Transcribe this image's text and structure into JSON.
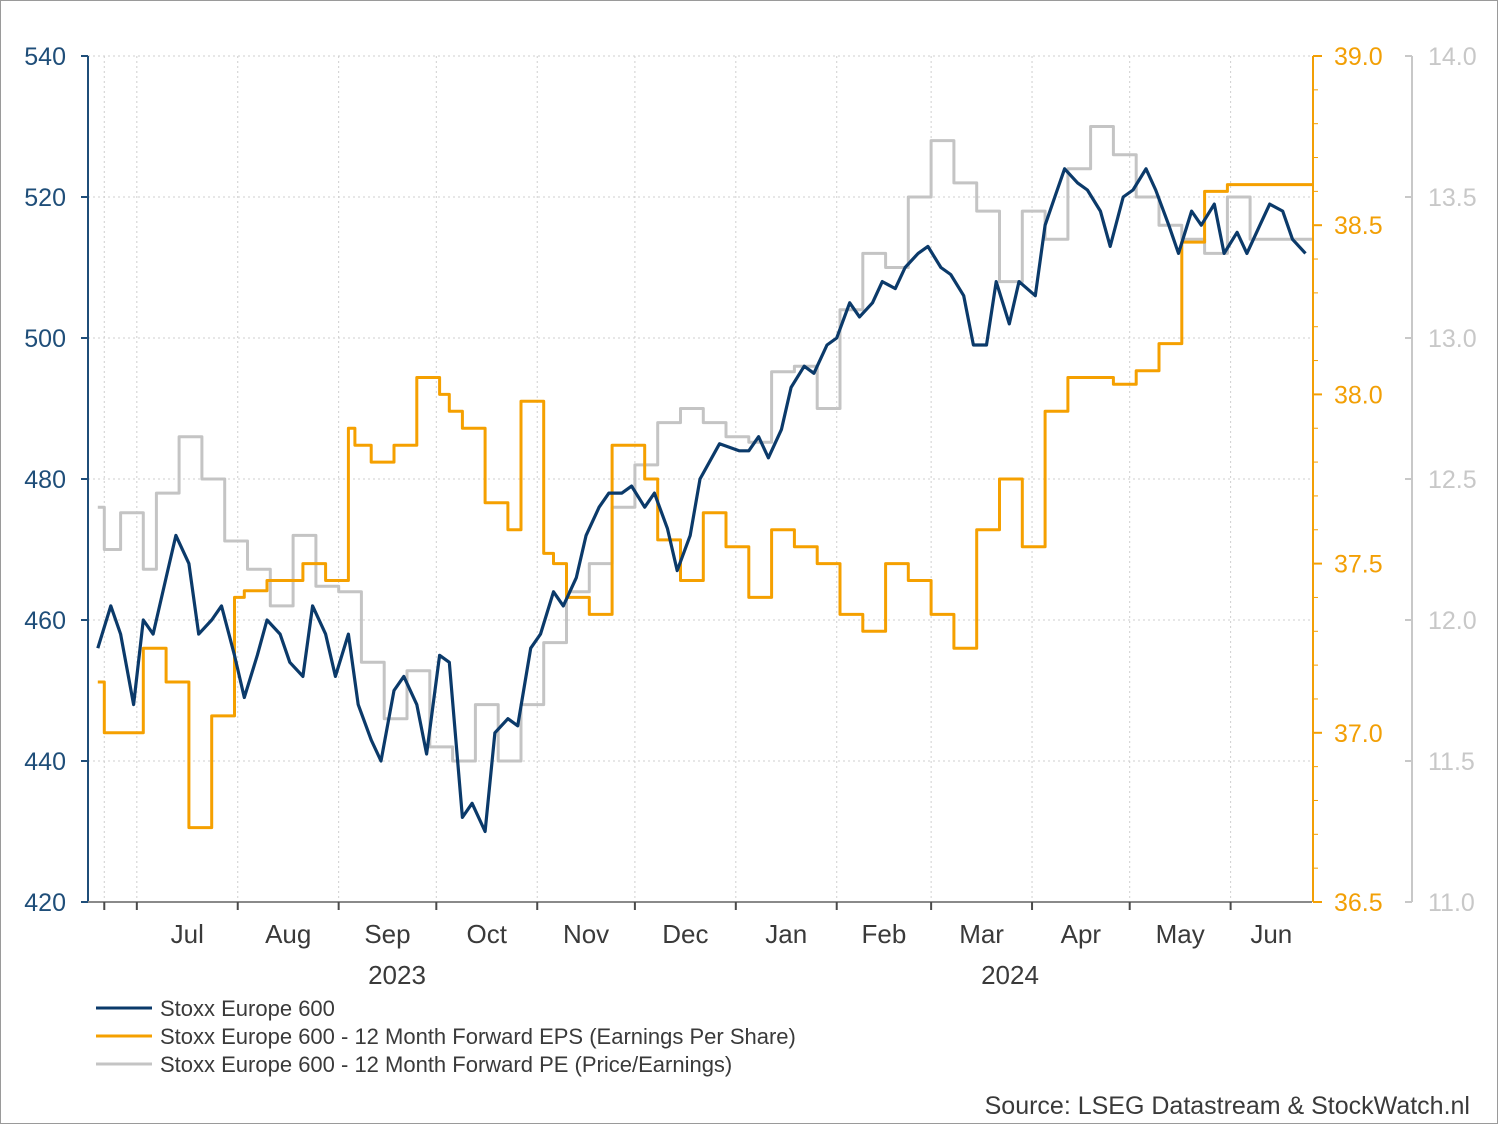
{
  "chart_data": {
    "type": "line",
    "colors": {
      "stoxx": "#0b3a6a",
      "eps": "#f5a000",
      "pe": "#c4c4c4",
      "left_axis": "#1f4e79",
      "eps_axis": "#f29f05",
      "pe_axis": "#c8c8c8",
      "grid": "#cfcfcf"
    },
    "axes": {
      "left": {
        "min": 420,
        "max": 540,
        "ticks": [
          "420",
          "440",
          "460",
          "480",
          "500",
          "520",
          "540"
        ]
      },
      "right_eps": {
        "min": 36.5,
        "max": 39.0,
        "ticks": [
          "36.5",
          "37.0",
          "37.5",
          "38.0",
          "38.5",
          "39.0"
        ]
      },
      "right_pe": {
        "min": 11.0,
        "max": 14.0,
        "ticks": [
          "11.0",
          "11.5",
          "12.0",
          "12.5",
          "13.0",
          "13.5",
          "14.0"
        ]
      }
    },
    "x_axis": {
      "months": [
        "Jul",
        "Aug",
        "Sep",
        "Oct",
        "Nov",
        "Dec",
        "Jan",
        "Feb",
        "Mar",
        "Apr",
        "May",
        "Jun"
      ],
      "years": [
        "2023",
        "2024"
      ]
    },
    "grid": true,
    "legend_position": "bottom-left",
    "legend": [
      "Stoxx Europe 600",
      "Stoxx Europe 600 - 12 Month Forward EPS (Earnings Per Share)",
      "Stoxx Europe 600 - 12 Month Forward PE (Price/Earnings)"
    ],
    "series": [
      {
        "name": "Stoxx Europe 600",
        "axis": "left",
        "x": [
          "2023-06-19",
          "2023-06-23",
          "2023-06-26",
          "2023-06-30",
          "2023-07-03",
          "2023-07-06",
          "2023-07-10",
          "2023-07-13",
          "2023-07-17",
          "2023-07-20",
          "2023-07-24",
          "2023-07-27",
          "2023-07-31",
          "2023-08-03",
          "2023-08-07",
          "2023-08-10",
          "2023-08-14",
          "2023-08-17",
          "2023-08-21",
          "2023-08-24",
          "2023-08-28",
          "2023-08-31",
          "2023-09-04",
          "2023-09-07",
          "2023-09-11",
          "2023-09-14",
          "2023-09-18",
          "2023-09-21",
          "2023-09-25",
          "2023-09-28",
          "2023-10-02",
          "2023-10-05",
          "2023-10-09",
          "2023-10-12",
          "2023-10-16",
          "2023-10-19",
          "2023-10-23",
          "2023-10-26",
          "2023-10-30",
          "2023-11-02",
          "2023-11-06",
          "2023-11-09",
          "2023-11-13",
          "2023-11-16",
          "2023-11-20",
          "2023-11-23",
          "2023-11-27",
          "2023-11-30",
          "2023-12-04",
          "2023-12-07",
          "2023-12-11",
          "2023-12-14",
          "2023-12-18",
          "2023-12-21",
          "2023-12-27",
          "2024-01-02",
          "2024-01-05",
          "2024-01-08",
          "2024-01-11",
          "2024-01-15",
          "2024-01-18",
          "2024-01-22",
          "2024-01-25",
          "2024-01-29",
          "2024-02-01",
          "2024-02-05",
          "2024-02-08",
          "2024-02-12",
          "2024-02-15",
          "2024-02-19",
          "2024-02-22",
          "2024-02-26",
          "2024-02-29",
          "2024-03-04",
          "2024-03-07",
          "2024-03-11",
          "2024-03-14",
          "2024-03-18",
          "2024-03-21",
          "2024-03-25",
          "2024-03-28",
          "2024-04-02",
          "2024-04-05",
          "2024-04-08",
          "2024-04-11",
          "2024-04-15",
          "2024-04-18",
          "2024-04-22",
          "2024-04-25",
          "2024-04-29",
          "2024-05-02",
          "2024-05-06",
          "2024-05-09",
          "2024-05-13",
          "2024-05-16",
          "2024-05-20",
          "2024-05-23",
          "2024-05-27",
          "2024-05-30",
          "2024-06-03",
          "2024-06-06",
          "2024-06-10",
          "2024-06-13",
          "2024-06-17",
          "2024-06-20",
          "2024-06-24"
        ],
        "values": [
          456,
          462,
          458,
          448,
          460,
          458,
          466,
          472,
          468,
          458,
          460,
          462,
          455,
          449,
          455,
          460,
          458,
          454,
          452,
          462,
          458,
          452,
          458,
          448,
          443,
          440,
          450,
          452,
          448,
          441,
          455,
          454,
          432,
          434,
          430,
          444,
          446,
          445,
          456,
          458,
          464,
          462,
          466,
          472,
          476,
          478,
          478,
          479,
          476,
          478,
          473,
          467,
          472,
          480,
          485,
          484,
          484,
          486,
          483,
          487,
          493,
          496,
          495,
          499,
          500,
          505,
          503,
          505,
          508,
          507,
          510,
          512,
          513,
          510,
          509,
          506,
          499,
          499,
          508,
          502,
          508,
          506,
          516,
          520,
          524,
          522,
          521,
          518,
          513,
          520,
          521,
          524,
          521,
          516,
          512,
          518,
          516,
          519,
          512,
          515,
          512,
          516,
          519,
          518,
          514,
          512
        ]
      },
      {
        "name": "Stoxx Europe 600 - 12 Month Forward EPS (Earnings Per Share)",
        "axis": "right_eps",
        "x": [
          "2023-06-19",
          "2023-06-21",
          "2023-07-03",
          "2023-07-10",
          "2023-07-17",
          "2023-07-24",
          "2023-07-31",
          "2023-08-03",
          "2023-08-10",
          "2023-08-21",
          "2023-08-28",
          "2023-09-04",
          "2023-09-06",
          "2023-09-11",
          "2023-09-18",
          "2023-09-25",
          "2023-10-02",
          "2023-10-05",
          "2023-10-09",
          "2023-10-16",
          "2023-10-23",
          "2023-10-27",
          "2023-11-03",
          "2023-11-06",
          "2023-11-10",
          "2023-11-17",
          "2023-11-24",
          "2023-12-04",
          "2023-12-08",
          "2023-12-15",
          "2023-12-22",
          "2023-12-29",
          "2024-01-05",
          "2024-01-12",
          "2024-01-19",
          "2024-01-26",
          "2024-02-02",
          "2024-02-09",
          "2024-02-16",
          "2024-02-23",
          "2024-03-01",
          "2024-03-08",
          "2024-03-15",
          "2024-03-22",
          "2024-03-29",
          "2024-04-05",
          "2024-04-12",
          "2024-04-19",
          "2024-04-26",
          "2024-05-03",
          "2024-05-10",
          "2024-05-17",
          "2024-05-24",
          "2024-05-31",
          "2024-06-04",
          "2024-06-10",
          "2024-06-17",
          "2024-06-24"
        ],
        "values": [
          37.15,
          37.0,
          37.25,
          37.15,
          36.72,
          37.05,
          37.4,
          37.42,
          37.45,
          37.5,
          37.45,
          37.9,
          37.85,
          37.8,
          37.85,
          38.05,
          38.0,
          37.95,
          37.9,
          37.68,
          37.6,
          37.98,
          37.53,
          37.5,
          37.4,
          37.35,
          37.85,
          37.75,
          37.57,
          37.45,
          37.65,
          37.55,
          37.4,
          37.6,
          37.55,
          37.5,
          37.35,
          37.3,
          37.5,
          37.45,
          37.35,
          37.25,
          37.6,
          37.75,
          37.55,
          37.95,
          38.05,
          38.05,
          38.03,
          38.07,
          38.15,
          38.45,
          38.6,
          38.62,
          38.62,
          38.62,
          38.62,
          38.62
        ]
      },
      {
        "name": "Stoxx Europe 600 - 12 Month Forward PE (Price/Earnings)",
        "axis": "right_pe",
        "x": [
          "2023-06-19",
          "2023-06-21",
          "2023-06-26",
          "2023-07-03",
          "2023-07-07",
          "2023-07-14",
          "2023-07-21",
          "2023-07-28",
          "2023-08-04",
          "2023-08-11",
          "2023-08-18",
          "2023-08-25",
          "2023-09-01",
          "2023-09-08",
          "2023-09-15",
          "2023-09-22",
          "2023-09-29",
          "2023-10-06",
          "2023-10-13",
          "2023-10-20",
          "2023-10-27",
          "2023-11-03",
          "2023-11-10",
          "2023-11-17",
          "2023-11-24",
          "2023-12-01",
          "2023-12-08",
          "2023-12-15",
          "2023-12-22",
          "2023-12-29",
          "2024-01-05",
          "2024-01-12",
          "2024-01-19",
          "2024-01-26",
          "2024-02-02",
          "2024-02-09",
          "2024-02-16",
          "2024-02-23",
          "2024-03-01",
          "2024-03-08",
          "2024-03-15",
          "2024-03-22",
          "2024-03-29",
          "2024-04-05",
          "2024-04-12",
          "2024-04-19",
          "2024-04-26",
          "2024-05-03",
          "2024-05-10",
          "2024-05-17",
          "2024-05-24",
          "2024-05-31",
          "2024-06-07",
          "2024-06-14",
          "2024-06-21",
          "2024-06-24"
        ],
        "values": [
          12.4,
          12.25,
          12.38,
          12.18,
          12.45,
          12.65,
          12.5,
          12.28,
          12.18,
          12.05,
          12.3,
          12.12,
          12.1,
          11.85,
          11.65,
          11.82,
          11.55,
          11.5,
          11.7,
          11.5,
          11.7,
          11.92,
          12.1,
          12.2,
          12.4,
          12.55,
          12.7,
          12.75,
          12.7,
          12.65,
          12.63,
          12.88,
          12.9,
          12.75,
          13.1,
          13.3,
          13.25,
          13.5,
          13.7,
          13.55,
          13.45,
          13.2,
          13.45,
          13.35,
          13.6,
          13.75,
          13.65,
          13.5,
          13.4,
          13.35,
          13.3,
          13.5,
          13.35,
          13.35,
          13.35,
          13.35
        ]
      }
    ]
  },
  "legend": {
    "items": [
      {
        "label": "Stoxx Europe 600",
        "color": "#0b3a6a"
      },
      {
        "label": "Stoxx Europe 600 - 12 Month Forward EPS (Earnings Per Share)",
        "color": "#f5a000"
      },
      {
        "label": "Stoxx Europe 600 - 12 Month Forward PE (Price/Earnings)",
        "color": "#c4c4c4"
      }
    ]
  },
  "source": "Source: LSEG Datastream & StockWatch.nl"
}
